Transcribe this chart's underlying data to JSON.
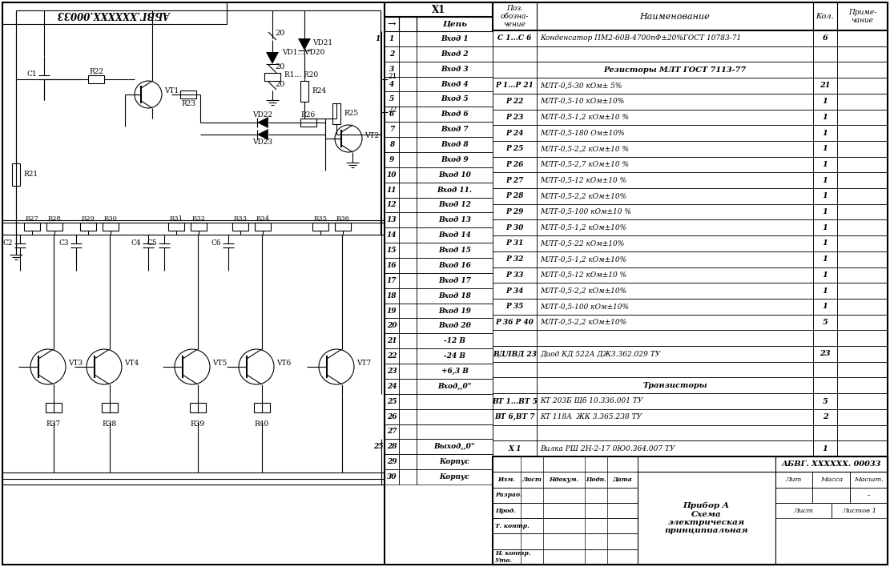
{
  "bg_color": "#ffffff",
  "line_color": "#000000",
  "connector_rows": [
    [
      "1",
      "1",
      "Вход 1"
    ],
    [
      "",
      "2",
      "Вход 2"
    ],
    [
      "",
      "3",
      "Вход 3"
    ],
    [
      "",
      "4",
      "Вход 4"
    ],
    [
      "",
      "5",
      "Вход 5"
    ],
    [
      "",
      "6",
      "Вход 6"
    ],
    [
      "",
      "7",
      "Вход 7"
    ],
    [
      "",
      "8",
      "Вход 8"
    ],
    [
      "",
      "9",
      "Вход 9"
    ],
    [
      "",
      "10",
      "Вход 10"
    ],
    [
      "",
      "11",
      "Вход 11."
    ],
    [
      "",
      "12",
      "Вход 12"
    ],
    [
      "",
      "13",
      "Вход 13"
    ],
    [
      "",
      "14",
      "Вход 14"
    ],
    [
      "",
      "15",
      "Вход 15"
    ],
    [
      "",
      "16",
      "Вход 16"
    ],
    [
      "",
      "17",
      "Вход 17"
    ],
    [
      "",
      "18",
      "Вход 18"
    ],
    [
      "",
      "19",
      "Вход 19"
    ],
    [
      "",
      "20",
      "Вход 20"
    ],
    [
      "",
      "21",
      "-12 В"
    ],
    [
      "",
      "22",
      "-24 В"
    ],
    [
      "",
      "23",
      "+6,3 В"
    ],
    [
      "",
      "24",
      "Вход,,0\""
    ],
    [
      "",
      "25",
      ""
    ],
    [
      "",
      "26",
      ""
    ],
    [
      "",
      "27",
      ""
    ],
    [
      "25",
      "28",
      "Выход,,0\""
    ],
    [
      "",
      "29",
      "Корпус"
    ],
    [
      "",
      "30",
      "Корпус"
    ]
  ],
  "bom_rows": [
    [
      "С 1...С 6",
      "Конденсатор ПМ2-60В-4700пФ±20%ГОСТ 10783-71",
      "6",
      "",
      false
    ],
    [
      "",
      "",
      "",
      "",
      false
    ],
    [
      "",
      "Резисторы МЛТ ГОСТ 7113-77",
      "",
      "",
      true
    ],
    [
      "Р 1...Р 21",
      "МЛТ-0,5-30 кОм± 5%",
      "21",
      "",
      false
    ],
    [
      "Р 22",
      "МЛТ-0,5-10 кОм±10%",
      "1",
      "",
      false
    ],
    [
      "Р 23",
      "МЛТ-0,5-1,2 кОм±10 %",
      "1",
      "",
      false
    ],
    [
      "Р 24",
      "МЛТ-0,5-180 Ом±10%",
      "1",
      "",
      false
    ],
    [
      "Р 25",
      "МЛТ-0,5-2,2 кОм±10 %",
      "1",
      "",
      false
    ],
    [
      "Р 26",
      "МЛТ-0,5-2,7 кОм±10 %",
      "1",
      "",
      false
    ],
    [
      "Р 27",
      "МЛТ-0,5-12 кОм±10 %",
      "1",
      "",
      false
    ],
    [
      "Р 28",
      "МЛТ-0,5-2,2 кОм±10%",
      "1",
      "",
      false
    ],
    [
      "Р 29",
      "МЛТ-0,5-100 кОм±10 %",
      "1",
      "",
      false
    ],
    [
      "Р 30",
      "МЛТ-0,5-1,2 кОм±10%",
      "1",
      "",
      false
    ],
    [
      "Р 31",
      "МЛТ-0,5-22 кОм±10%",
      "1",
      "",
      false
    ],
    [
      "Р 32",
      "МЛТ-0,5-1,2 кОм±10%",
      "1",
      "",
      false
    ],
    [
      "Р 33",
      "МЛТ-0,5-12 кОм±10 %",
      "1",
      "",
      false
    ],
    [
      "Р 34",
      "МЛТ-0,5-2,2 кОм±10%",
      "1",
      "",
      false
    ],
    [
      "Р 35",
      "МЛТ-0,5-100 кОм±10%",
      "1",
      "",
      false
    ],
    [
      "Р 36 Р 40",
      "МЛТ-0,5-2,2 кОм±10%",
      "5",
      "",
      false
    ],
    [
      "",
      "",
      "",
      "",
      false
    ],
    [
      "ВДЛВД 23",
      "Диод КД 522А ДЖ3.362.029 ТУ",
      "23",
      "",
      false
    ],
    [
      "",
      "",
      "",
      "",
      false
    ],
    [
      "",
      "Транзисторы",
      "",
      "",
      true
    ],
    [
      "ВТ 1...ВТ 5",
      "КТ 203Б Щб 10.336.001 ТУ",
      "5",
      "",
      false
    ],
    [
      "ВТ 6,ВТ 7",
      "КТ 118А  ЖК 3.365.238 ТУ",
      "2",
      "",
      false
    ],
    [
      "",
      "",
      "",
      "",
      false
    ],
    [
      "Х 1",
      "Вилка РШ 2Н-2-17 0Ю0.364.007 ТУ",
      "1",
      "",
      false
    ]
  ]
}
